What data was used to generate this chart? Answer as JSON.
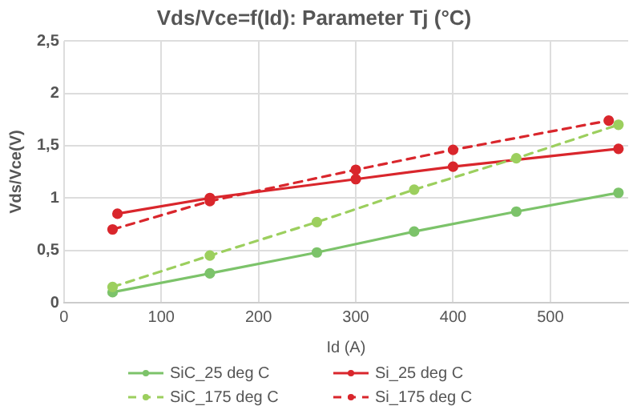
{
  "chart_data": {
    "type": "line",
    "title": "Vds/Vce=f(Id): Parameter Tj (°C)",
    "xlabel": "Id (A)",
    "ylabel": "Vds/Vce(V)",
    "xlim": [
      0,
      580
    ],
    "xticks": [
      0,
      100,
      200,
      300,
      400,
      500
    ],
    "ylim": [
      0,
      2.5
    ],
    "yticks": [
      {
        "value": 0,
        "label": "0"
      },
      {
        "value": 0.5,
        "label": "0,5"
      },
      {
        "value": 1,
        "label": "1"
      },
      {
        "value": 1.5,
        "label": "1,5"
      },
      {
        "value": 2,
        "label": "2"
      },
      {
        "value": 2.5,
        "label": "2,5"
      }
    ],
    "grid": true,
    "legend": "bottom",
    "marker": "circle",
    "series": [
      {
        "name": "SiC_25 deg C",
        "color": "#7cc36a",
        "line_style": "solid",
        "x": [
          50,
          150,
          260,
          360,
          465,
          570
        ],
        "values": [
          0.1,
          0.28,
          0.48,
          0.68,
          0.87,
          1.05
        ]
      },
      {
        "name": "Si_25 deg C",
        "color": "#d9262c",
        "line_style": "solid",
        "x": [
          55,
          150,
          300,
          400,
          570
        ],
        "values": [
          0.85,
          1.0,
          1.18,
          1.3,
          1.47
        ]
      },
      {
        "name": "SiC_175 deg C",
        "color": "#9ccf5e",
        "line_style": "dashed",
        "x": [
          50,
          150,
          260,
          360,
          465,
          570
        ],
        "values": [
          0.15,
          0.45,
          0.77,
          1.08,
          1.38,
          1.7
        ]
      },
      {
        "name": "Si_175 deg C",
        "color": "#d9262c",
        "line_style": "dashed",
        "x": [
          50,
          150,
          300,
          400,
          560
        ],
        "values": [
          0.7,
          0.97,
          1.27,
          1.46,
          1.74
        ]
      }
    ]
  }
}
